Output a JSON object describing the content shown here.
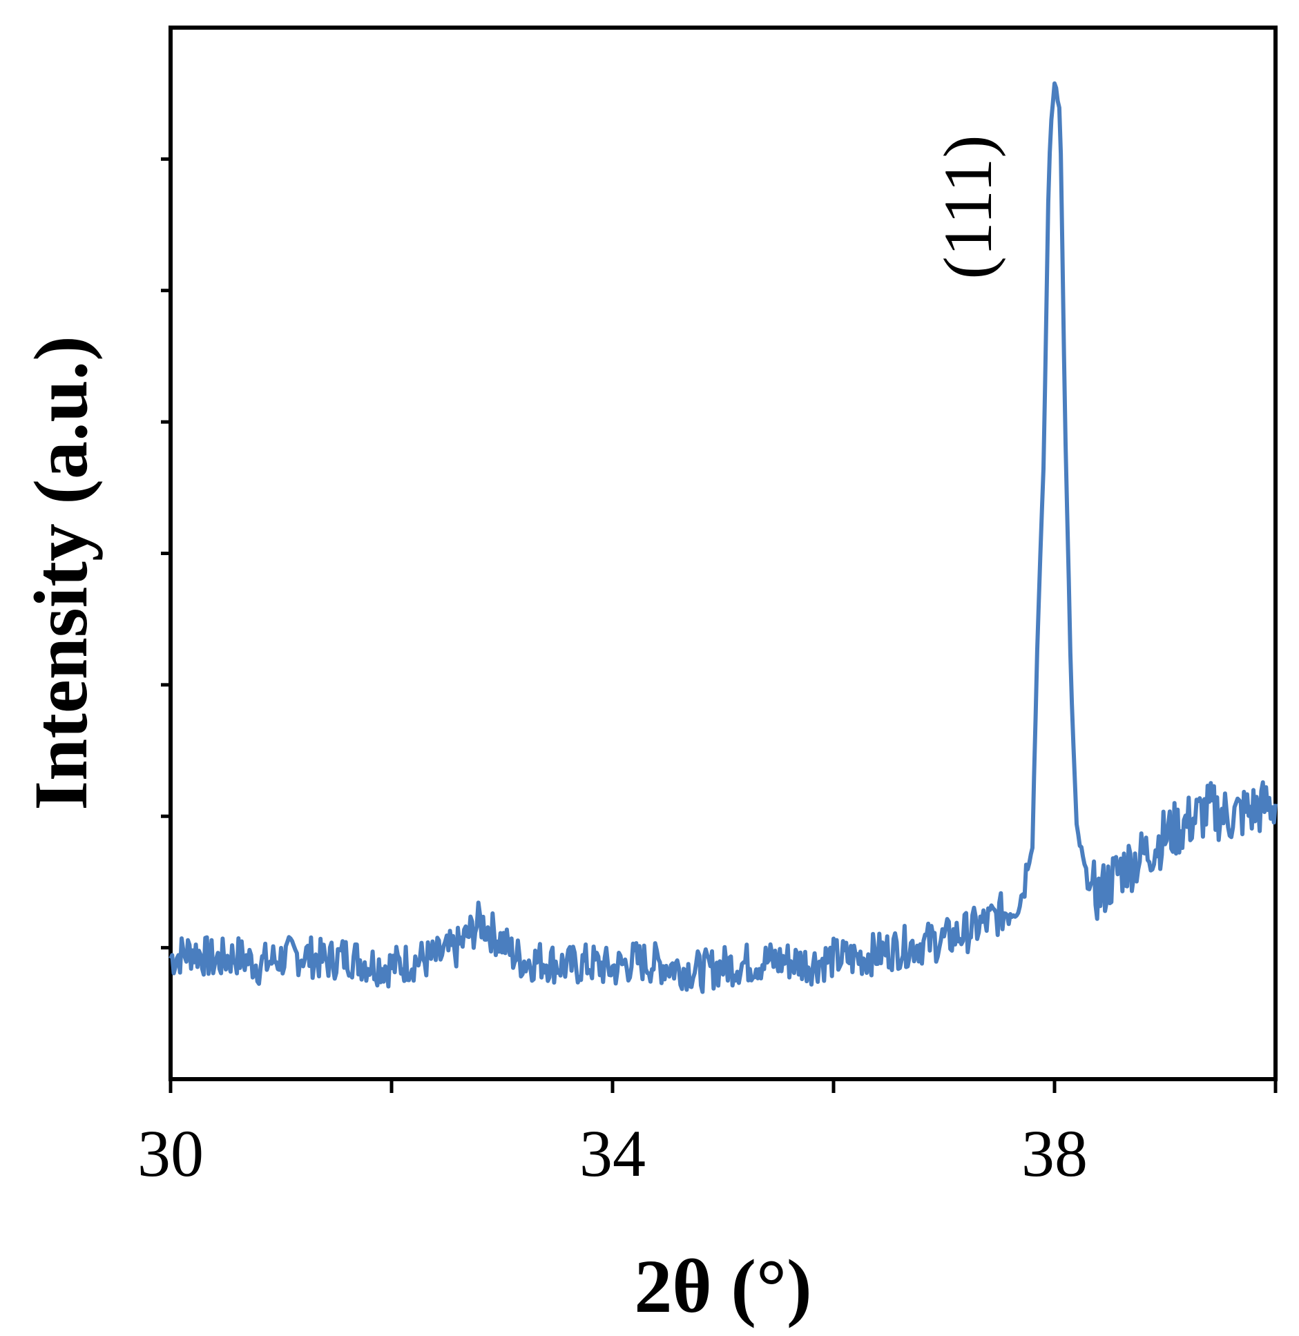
{
  "chart_data": {
    "type": "line",
    "title": "",
    "xlabel": "2θ (°)",
    "ylabel": "Intensity (a.u.)",
    "xlim": [
      30,
      40
    ],
    "ylim": [
      0,
      8
    ],
    "x_ticks": [
      30,
      32,
      34,
      36,
      38,
      40
    ],
    "x_tick_labels": [
      "30",
      "",
      "34",
      "",
      "38",
      ""
    ],
    "y_ticks": [
      1,
      2,
      3,
      4,
      5,
      6,
      7
    ],
    "y_tick_labels_shown": false,
    "grid": false,
    "legend": "none",
    "line_color": "#4a7ebf",
    "series": [
      {
        "x": [
          30.0,
          30.2,
          30.4,
          30.6,
          30.8,
          31.0,
          31.2,
          31.4,
          31.6,
          31.8,
          32.0,
          32.2,
          32.4,
          32.6,
          32.8,
          33.0,
          33.1,
          33.2,
          33.4,
          33.6,
          33.8,
          34.0,
          34.2,
          34.4,
          34.6,
          34.8,
          35.0,
          35.2,
          35.4,
          35.6,
          35.8,
          36.0,
          36.2,
          36.4,
          36.6,
          36.8,
          37.0,
          37.2,
          37.4,
          37.6,
          37.7,
          37.8,
          37.85,
          37.9,
          37.95,
          38.0,
          38.05,
          38.1,
          38.15,
          38.2,
          38.3,
          38.4,
          38.5,
          38.6,
          38.8,
          39.0,
          39.2,
          39.4,
          39.6,
          39.8,
          40.0
        ],
        "y": [
          0.92,
          0.98,
          0.9,
          0.94,
          0.87,
          0.92,
          0.95,
          0.9,
          0.94,
          0.88,
          0.86,
          0.9,
          0.92,
          1.0,
          1.2,
          1.05,
          0.95,
          0.9,
          0.9,
          0.86,
          0.88,
          0.84,
          0.9,
          0.88,
          0.85,
          0.82,
          0.86,
          0.88,
          0.9,
          0.9,
          0.88,
          0.92,
          0.92,
          0.96,
          1.0,
          1.03,
          1.06,
          1.12,
          1.2,
          1.3,
          1.4,
          1.8,
          3.5,
          4.6,
          7.0,
          7.6,
          7.4,
          4.8,
          3.0,
          1.9,
          1.5,
          1.4,
          1.5,
          1.6,
          1.7,
          1.85,
          1.95,
          2.05,
          2.0,
          2.05,
          2.1
        ]
      }
    ],
    "annotations": [
      {
        "text": "(111)",
        "x": 38.05
      }
    ]
  }
}
